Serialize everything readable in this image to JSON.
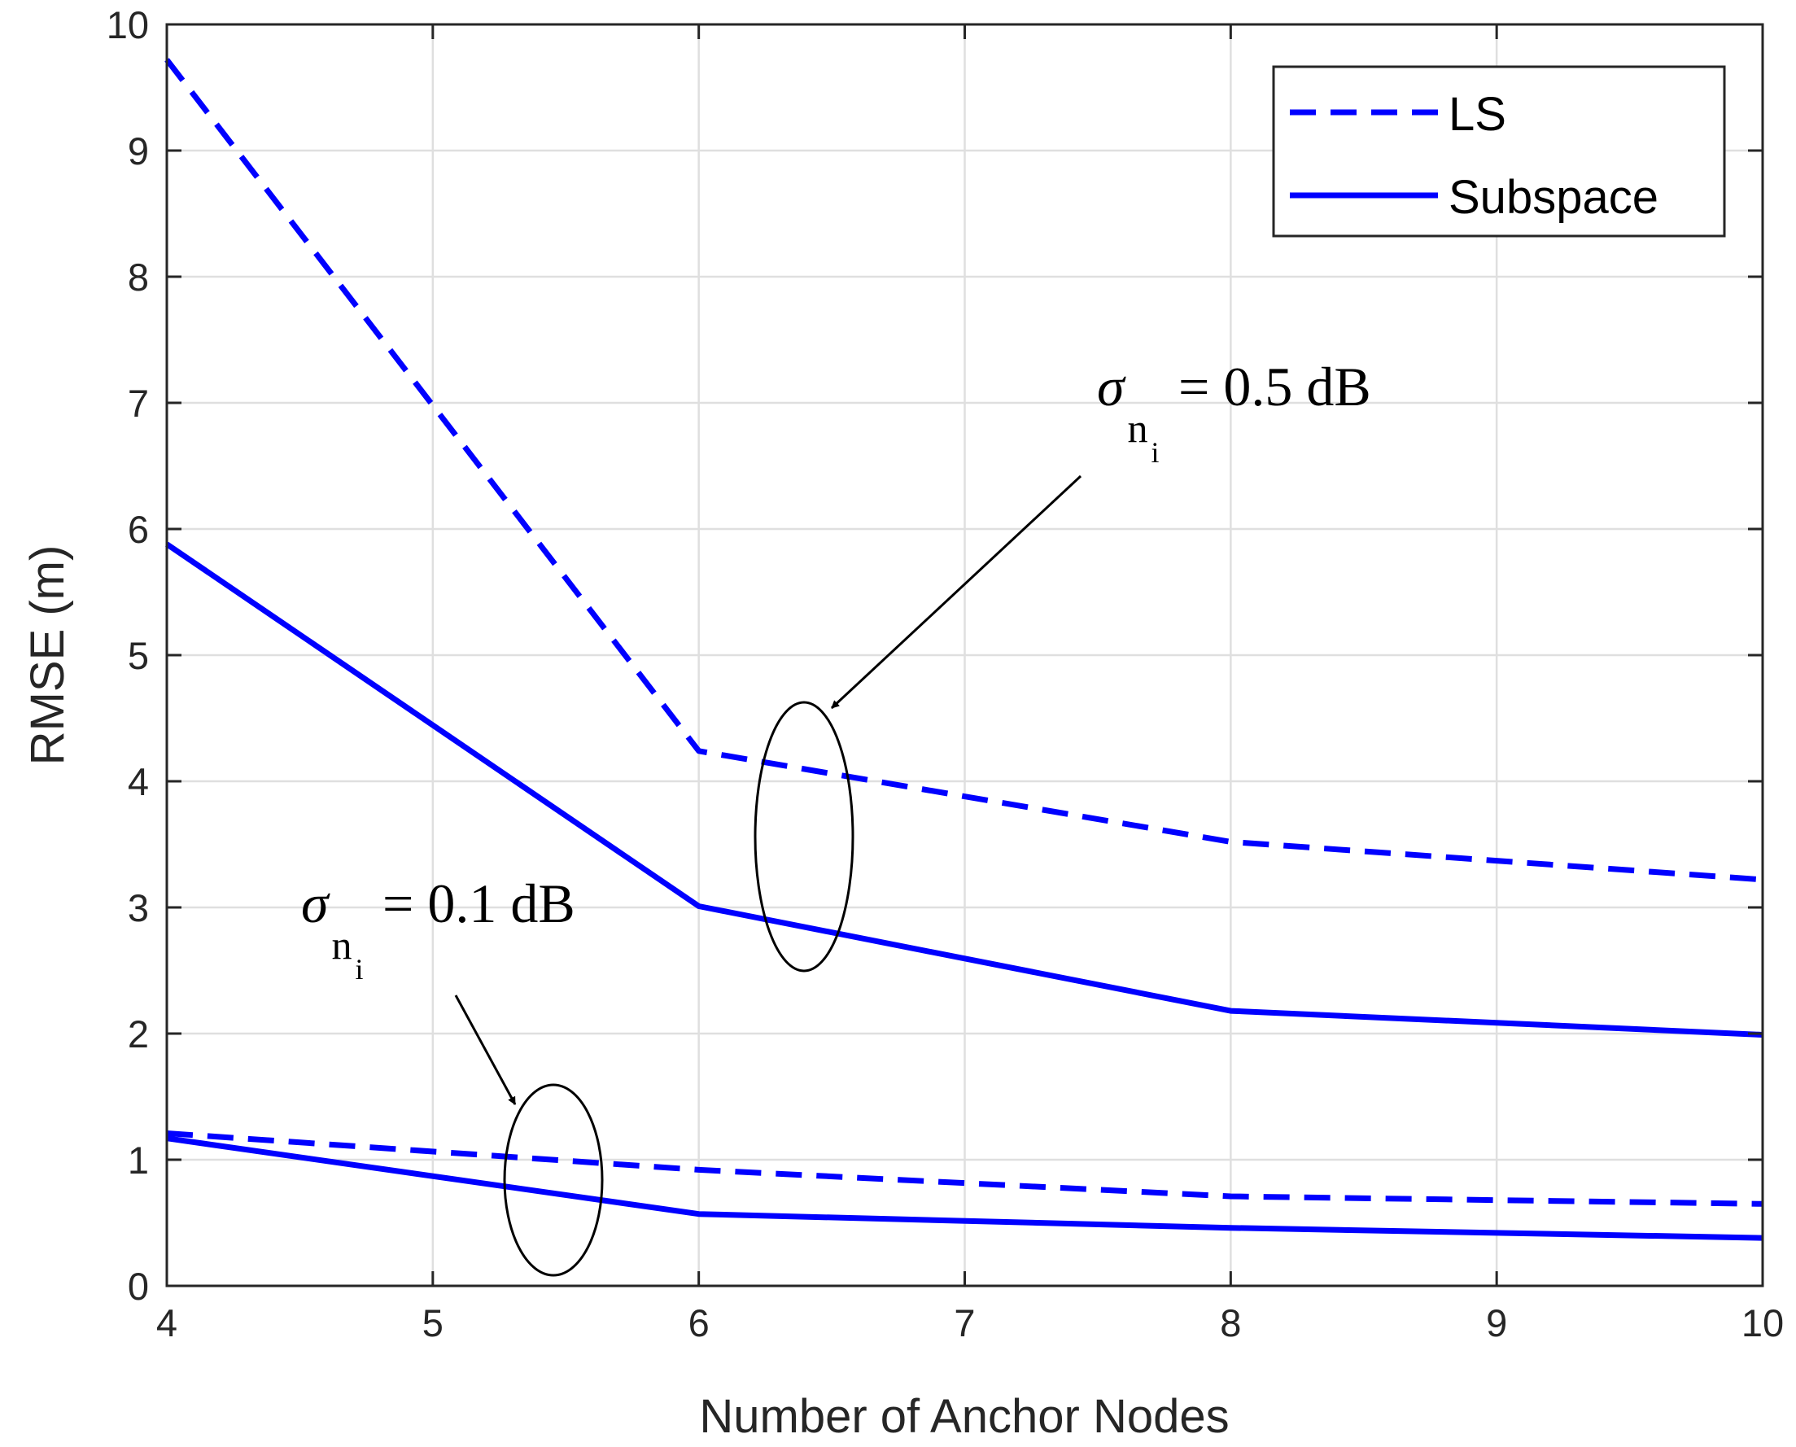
{
  "chart_data": {
    "type": "line",
    "title": "",
    "xlabel": "Number of Anchor Nodes",
    "ylabel": "RMSE (m)",
    "xlim": [
      4,
      10
    ],
    "ylim": [
      0,
      10
    ],
    "xticks": [
      4,
      5,
      6,
      7,
      8,
      9,
      10
    ],
    "yticks": [
      0,
      1,
      2,
      3,
      4,
      5,
      6,
      7,
      8,
      9,
      10
    ],
    "grid": true,
    "legend_position": "top-right",
    "legend": [
      {
        "label": "LS",
        "style": "dashed",
        "color": "#0000ff"
      },
      {
        "label": "Subspace",
        "style": "solid",
        "color": "#0000ff"
      }
    ],
    "series": [
      {
        "name": "LS",
        "noise": "0.5 dB",
        "style": "dashed",
        "x": [
          4,
          6,
          8,
          10
        ],
        "y": [
          9.72,
          4.24,
          3.52,
          3.22
        ]
      },
      {
        "name": "Subspace",
        "noise": "0.5 dB",
        "style": "solid",
        "x": [
          4,
          6,
          8,
          10
        ],
        "y": [
          5.88,
          3.01,
          2.18,
          1.99
        ]
      },
      {
        "name": "LS",
        "noise": "0.1 dB",
        "style": "dashed",
        "x": [
          4,
          6,
          8,
          10
        ],
        "y": [
          1.21,
          0.92,
          0.71,
          0.65
        ]
      },
      {
        "name": "Subspace",
        "noise": "0.1 dB",
        "style": "solid",
        "x": [
          4,
          6,
          8,
          10
        ],
        "y": [
          1.17,
          0.57,
          0.46,
          0.38
        ]
      }
    ],
    "annotations": [
      {
        "symbol": "σ",
        "sub": "n",
        "subsub": "i",
        "text": "= 0.5 dB",
        "ellipse_center": [
          6.4,
          3.6
        ]
      },
      {
        "symbol": "σ",
        "sub": "n",
        "subsub": "i",
        "text": "= 0.1 dB",
        "ellipse_center": [
          5.45,
          0.86
        ]
      }
    ],
    "colors": {
      "line": "#0000ff",
      "axis": "#262626",
      "grid": "#dfdfdf"
    }
  }
}
